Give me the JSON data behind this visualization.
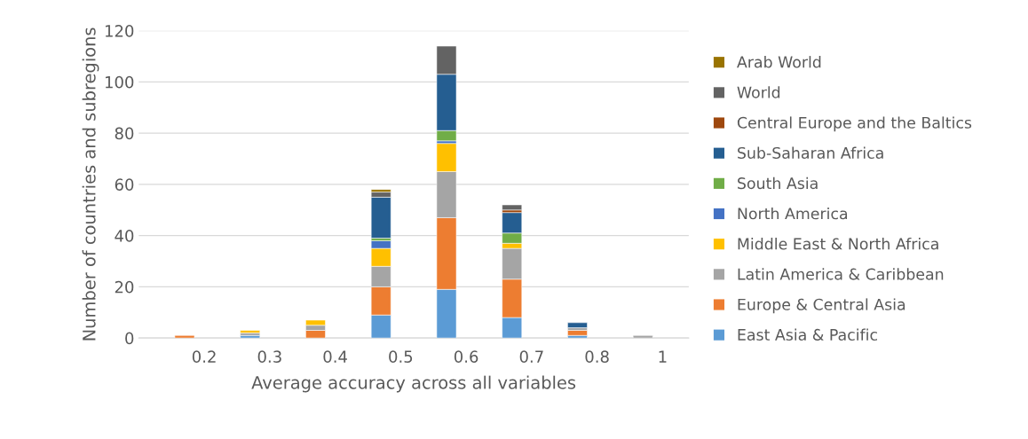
{
  "chart_data": {
    "type": "bar",
    "stacked": true,
    "xlabel": "Average accuracy across all variables",
    "ylabel": "Number of countries and subregions",
    "categories": [
      "0.2",
      "0.3",
      "0.4",
      "0.5",
      "0.6",
      "0.7",
      "0.8",
      "1"
    ],
    "series": [
      {
        "name": "East Asia & Pacific",
        "color": "#5b9bd5",
        "values": [
          0,
          1,
          0,
          9,
          19,
          8,
          1,
          0
        ]
      },
      {
        "name": "Europe & Central Asia",
        "color": "#ed7d31",
        "values": [
          1,
          0,
          3,
          11,
          28,
          15,
          2,
          0
        ]
      },
      {
        "name": "Latin America & Caribbean",
        "color": "#a5a5a5",
        "values": [
          0,
          1,
          2,
          8,
          18,
          12,
          1,
          1
        ]
      },
      {
        "name": "Middle East & North Africa",
        "color": "#ffc000",
        "values": [
          0,
          1,
          2,
          7,
          11,
          2,
          0,
          0
        ]
      },
      {
        "name": "North America",
        "color": "#4472c4",
        "values": [
          0,
          0,
          0,
          3,
          1,
          0,
          0,
          0
        ]
      },
      {
        "name": "South Asia",
        "color": "#70ad47",
        "values": [
          0,
          0,
          0,
          1,
          4,
          4,
          0,
          0
        ]
      },
      {
        "name": "Sub-Saharan Africa",
        "color": "#255e91",
        "values": [
          0,
          0,
          0,
          16,
          22,
          8,
          2,
          0
        ]
      },
      {
        "name": "Central Europe and the Baltics",
        "color": "#9e480e",
        "values": [
          0,
          0,
          0,
          0,
          0,
          1,
          0,
          0
        ]
      },
      {
        "name": "World",
        "color": "#636363",
        "values": [
          0,
          0,
          0,
          2,
          11,
          2,
          0,
          0
        ]
      },
      {
        "name": "Arab World",
        "color": "#997300",
        "values": [
          0,
          0,
          0,
          1,
          0,
          0,
          0,
          0
        ]
      }
    ],
    "ylim": [
      0,
      120
    ],
    "yticks": [
      0,
      20,
      40,
      60,
      80,
      100,
      120
    ],
    "grid": "y",
    "legend": "right"
  }
}
